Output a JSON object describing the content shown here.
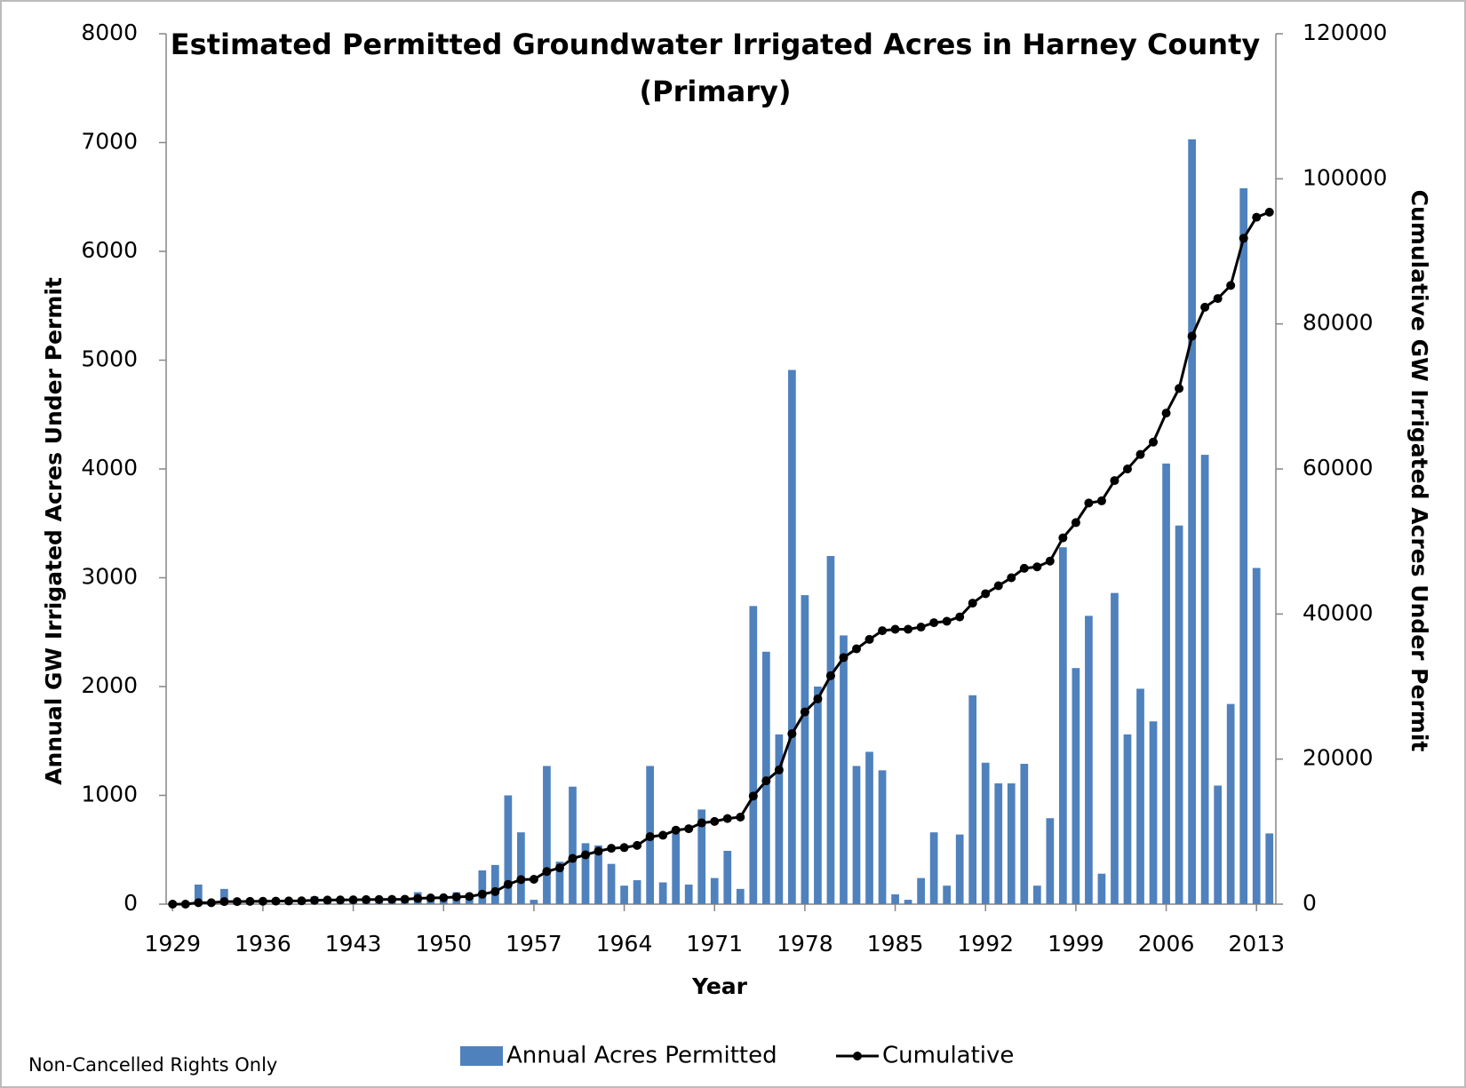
{
  "chart_data": {
    "type": "bar_line",
    "title": "Estimated Permitted Groundwater Irrigated Acres in Harney County",
    "subtitle": "(Primary)",
    "x_label": "Year",
    "y_label": "Annual GW Irrigated Acres Under Permit",
    "y2_label": "Cumulative GW Irrigated Acres Under Permit",
    "note": "Non-Cancelled Rights Only",
    "categories": [
      "1929",
      null,
      null,
      null,
      null,
      null,
      null,
      "1936",
      null,
      null,
      null,
      null,
      null,
      null,
      "1943",
      null,
      null,
      null,
      null,
      null,
      null,
      "1950",
      null,
      null,
      null,
      null,
      null,
      null,
      "1957",
      null,
      null,
      null,
      null,
      null,
      null,
      "1964",
      null,
      null,
      null,
      null,
      null,
      null,
      "1971",
      null,
      null,
      null,
      null,
      null,
      null,
      "1978",
      null,
      null,
      null,
      null,
      null,
      null,
      "1985",
      null,
      null,
      null,
      null,
      null,
      null,
      "1992",
      null,
      null,
      null,
      null,
      null,
      null,
      "1999",
      null,
      null,
      null,
      null,
      null,
      null,
      "2006",
      null,
      null,
      null,
      null,
      null,
      null,
      "2013",
      null
    ],
    "series": [
      {
        "name": "Annual Acres Permitted",
        "type": "bar",
        "color": "#4f81bd",
        "axis": "y",
        "values": [
          0,
          0,
          180,
          0,
          140,
          20,
          20,
          20,
          20,
          20,
          20,
          70,
          20,
          20,
          20,
          20,
          20,
          20,
          20,
          110,
          60,
          40,
          110,
          60,
          310,
          360,
          1000,
          660,
          40,
          1270,
          390,
          1080,
          560,
          540,
          370,
          170,
          220,
          1270,
          200,
          650,
          180,
          870,
          240,
          490,
          140,
          2740,
          2320,
          1560,
          4910,
          2840,
          2000,
          3200,
          2470,
          1270,
          1400,
          1230,
          90,
          40,
          240,
          660,
          170,
          640,
          1920,
          1300,
          1110,
          1110,
          1290,
          170,
          790,
          3280,
          2170,
          2650,
          280,
          2860,
          1560,
          1980,
          1680,
          4050,
          3480,
          7030,
          4130,
          1090,
          1840,
          6580,
          3090,
          650
        ]
      },
      {
        "name": "Cumulative",
        "type": "line",
        "color": "#000000",
        "axis": "y2",
        "values": [
          0,
          0,
          200,
          200,
          350,
          350,
          380,
          400,
          420,
          440,
          460,
          530,
          560,
          580,
          600,
          620,
          640,
          660,
          680,
          790,
          850,
          890,
          1000,
          1060,
          1370,
          1730,
          2730,
          3390,
          3430,
          4500,
          5000,
          6300,
          6800,
          7300,
          7700,
          7800,
          8100,
          9300,
          9500,
          10200,
          10400,
          11200,
          11400,
          11800,
          12000,
          14900,
          17000,
          18500,
          23500,
          26500,
          28300,
          31500,
          34000,
          35200,
          36500,
          37700,
          37900,
          37900,
          38200,
          38800,
          39000,
          39600,
          41500,
          42800,
          43900,
          45000,
          46300,
          46500,
          47300,
          50500,
          52600,
          55300,
          55600,
          58400,
          60000,
          62000,
          63700,
          67700,
          71100,
          78300,
          82300,
          83500,
          85300,
          91800,
          94700,
          95400
        ]
      }
    ],
    "ylim": [
      0,
      8000
    ],
    "yticks": [
      0,
      1000,
      2000,
      3000,
      4000,
      5000,
      6000,
      7000,
      8000
    ],
    "y2lim": [
      0,
      120000
    ],
    "y2ticks": [
      0,
      20000,
      40000,
      60000,
      80000,
      100000,
      120000
    ],
    "legend": "bottom"
  }
}
